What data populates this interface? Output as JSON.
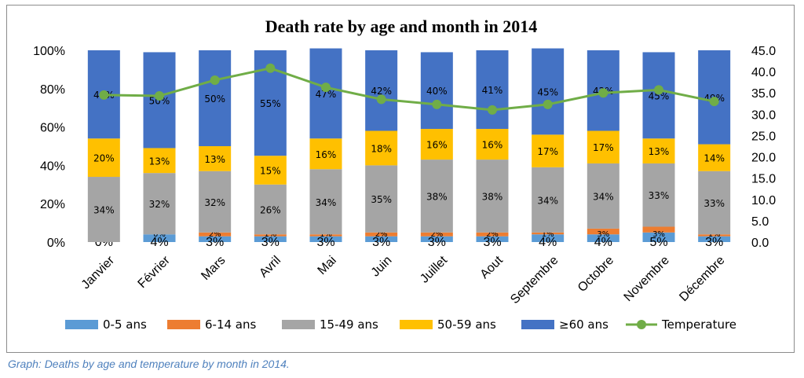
{
  "caption": "Graph: Deaths by age and temperature by month in 2014.",
  "chart_data": {
    "type": "bar",
    "stacked": true,
    "title": "Death rate by age and month in 2014",
    "categories": [
      "Janvier",
      "Février",
      "Mars",
      "Avril",
      "Mai",
      "Juin",
      "Juillet",
      "Aout",
      "Septembre",
      "Octobre",
      "Novembre",
      "Décembre"
    ],
    "ylim": [
      0,
      100
    ],
    "y_ticks": [
      "0%",
      "20%",
      "40%",
      "60%",
      "80%",
      "100%"
    ],
    "y2lim": [
      0,
      45
    ],
    "y2_ticks": [
      "0.0",
      "5.0",
      "10.0",
      "15.0",
      "20.0",
      "25.0",
      "30.0",
      "35.0",
      "40.0",
      "45.0"
    ],
    "legend_position": "bottom",
    "series": [
      {
        "name": "0-5 ans",
        "color": "#5b9bd5",
        "values": [
          0,
          4,
          3,
          3,
          3,
          3,
          3,
          3,
          4,
          4,
          5,
          3
        ],
        "labels": [
          "0%",
          "4%",
          "3%",
          "3%",
          "3%",
          "3%",
          "3%",
          "3%",
          "4%",
          "4%",
          "5%",
          "3%"
        ]
      },
      {
        "name": "6-14 ans",
        "color": "#ed7d31",
        "values": [
          0,
          0,
          2,
          1,
          1,
          2,
          2,
          2,
          1,
          3,
          3,
          1
        ],
        "labels": [
          "0%",
          "0%",
          "2%",
          "1%",
          "1%",
          "2%",
          "2%",
          "2%",
          "1%",
          "3%",
          "3%",
          "1%"
        ]
      },
      {
        "name": "15-49 ans",
        "color": "#a5a5a5",
        "values": [
          34,
          32,
          32,
          26,
          34,
          35,
          38,
          38,
          34,
          34,
          33,
          33
        ],
        "labels": [
          "34%",
          "32%",
          "32%",
          "26%",
          "34%",
          "35%",
          "38%",
          "38%",
          "34%",
          "34%",
          "33%",
          "33%"
        ]
      },
      {
        "name": "50-59 ans",
        "color": "#ffc000",
        "values": [
          20,
          13,
          13,
          15,
          16,
          18,
          16,
          16,
          17,
          17,
          13,
          14
        ],
        "labels": [
          "20%",
          "13%",
          "13%",
          "15%",
          "16%",
          "18%",
          "16%",
          "16%",
          "17%",
          "17%",
          "13%",
          "14%"
        ]
      },
      {
        "name": "≥60 ans",
        "color": "#4472c4",
        "values": [
          46,
          50,
          50,
          55,
          47,
          42,
          40,
          41,
          45,
          42,
          45,
          49
        ],
        "labels": [
          "46%",
          "50%",
          "50%",
          "55%",
          "47%",
          "42%",
          "40%",
          "41%",
          "45%",
          "42%",
          "45%",
          "49%"
        ]
      }
    ],
    "line_series": {
      "name": "Temperature",
      "axis": "right",
      "color": "#70ad47",
      "values": [
        34.5,
        34.3,
        38.0,
        40.8,
        36.3,
        33.5,
        32.3,
        31.0,
        32.3,
        35.0,
        35.7,
        33.0
      ]
    }
  }
}
